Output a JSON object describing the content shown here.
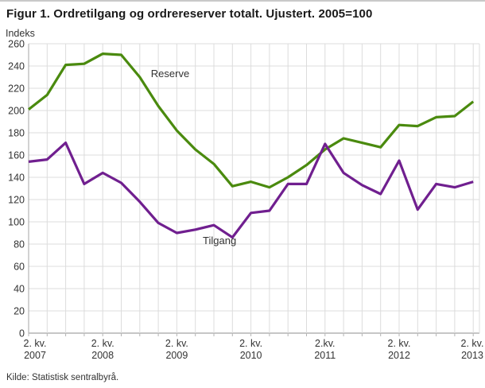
{
  "title": "Figur 1. Ordretilgang og ordrereserver totalt. Ujustert. 2005=100",
  "source": "Kilde: Statistisk sentralbyrå.",
  "colors": {
    "reserve_line": "#4a8a0e",
    "tilgang_line": "#701f8f",
    "grid": "#dcdcdc",
    "axis": "#b3b3b3",
    "tick_text": "#333333",
    "title_text": "#1a1a1a"
  },
  "chart_data": {
    "type": "line",
    "title": "Figur 1. Ordretilgang og ordrereserver totalt. Ujustert. 2005=100",
    "ylabel": "Indeks",
    "ylim": [
      0,
      260
    ],
    "ytick_step": 20,
    "y_ticks": [
      0,
      20,
      40,
      60,
      80,
      100,
      120,
      140,
      160,
      180,
      200,
      220,
      240,
      260
    ],
    "grid": true,
    "x_points_quarterly": 25,
    "x_tick_labels": [
      {
        "index": 0,
        "top": "2. kv.",
        "bottom": "2007"
      },
      {
        "index": 4,
        "top": "2. kv.",
        "bottom": "2008"
      },
      {
        "index": 8,
        "top": "2. kv.",
        "bottom": "2009"
      },
      {
        "index": 12,
        "top": "2. kv.",
        "bottom": "2010"
      },
      {
        "index": 16,
        "top": "2.kv.",
        "bottom": "2011"
      },
      {
        "index": 20,
        "top": "2. kv.",
        "bottom": "2012"
      },
      {
        "index": 24,
        "top": "2. kv.",
        "bottom": "2013"
      }
    ],
    "series": [
      {
        "name": "Reserve",
        "color": "#4a8a0e",
        "values": [
          201,
          214,
          241,
          242,
          251,
          250,
          230,
          204,
          182,
          165,
          152,
          132,
          136,
          131,
          140,
          151,
          165,
          175,
          171,
          167,
          187,
          186,
          194,
          195,
          208
        ]
      },
      {
        "name": "Tilgang",
        "color": "#701f8f",
        "values": [
          154,
          156,
          171,
          134,
          144,
          135,
          118,
          99,
          90,
          93,
          97,
          86,
          108,
          110,
          134,
          134,
          170,
          144,
          133,
          125,
          155,
          111,
          134,
          131,
          136
        ]
      }
    ],
    "annotations": [
      {
        "text": "Reserve",
        "x_index": 6.6,
        "value": 230
      },
      {
        "text": "Tilgang",
        "x_index": 9.4,
        "value": 80
      }
    ]
  }
}
